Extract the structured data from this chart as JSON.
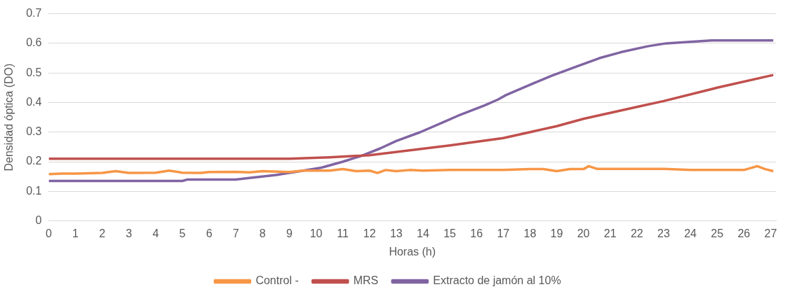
{
  "chart_data": {
    "type": "line",
    "xlabel": "Horas (h)",
    "ylabel": "Densidad óptica (DO)",
    "xlim": [
      0,
      27.2
    ],
    "xticks": [
      0,
      1,
      2,
      3,
      4,
      5,
      6,
      7,
      8,
      9,
      10,
      11,
      12,
      13,
      14,
      15,
      16,
      17,
      18,
      19,
      20,
      21,
      22,
      23,
      24,
      25,
      26,
      27
    ],
    "ylim": [
      0,
      0.7
    ],
    "yticks": [
      0,
      0.1,
      0.2,
      0.3,
      0.4,
      0.5,
      0.6,
      0.7
    ],
    "grid": "y",
    "legend": "bottom",
    "marker": "none",
    "line_style": "solid",
    "series": [
      {
        "name": "Control -",
        "color": "#f79646",
        "x": [
          0,
          0.5,
          1,
          2,
          2.5,
          3,
          4,
          4.5,
          5,
          5.7,
          6,
          7,
          7.5,
          8,
          9,
          9.5,
          10,
          10.5,
          11,
          11.5,
          12,
          12.3,
          12.6,
          13,
          13.5,
          14,
          15,
          16,
          17,
          18,
          18.5,
          19,
          19.5,
          20,
          20.2,
          20.5,
          21,
          22,
          23,
          24,
          25,
          26,
          26.5,
          26.8,
          27.1
        ],
        "values": [
          0.158,
          0.16,
          0.16,
          0.162,
          0.168,
          0.162,
          0.163,
          0.17,
          0.163,
          0.162,
          0.165,
          0.166,
          0.164,
          0.168,
          0.165,
          0.17,
          0.17,
          0.17,
          0.175,
          0.168,
          0.17,
          0.162,
          0.172,
          0.168,
          0.172,
          0.17,
          0.172,
          0.172,
          0.172,
          0.175,
          0.175,
          0.168,
          0.175,
          0.175,
          0.185,
          0.176,
          0.176,
          0.176,
          0.176,
          0.172,
          0.172,
          0.172,
          0.185,
          0.175,
          0.168
        ]
      },
      {
        "name": "MRS",
        "color": "#c0504d",
        "x": [
          0,
          9,
          10.5,
          12,
          15,
          17,
          19,
          20,
          22,
          23,
          25,
          27.1
        ],
        "values": [
          0.21,
          0.21,
          0.215,
          0.222,
          0.255,
          0.28,
          0.32,
          0.345,
          0.385,
          0.405,
          0.45,
          0.493
        ]
      },
      {
        "name": "Extracto de jamón al 10%",
        "color": "#8064a2",
        "x": [
          0,
          5,
          5.2,
          7,
          7.5,
          8.5,
          9.2,
          10.2,
          11,
          11.7,
          12.4,
          13,
          13.9,
          14.8,
          15.3,
          16.3,
          16.8,
          17.1,
          18,
          18.8,
          19.7,
          20.6,
          21.4,
          22.4,
          23.1,
          24,
          24.8,
          27.1
        ],
        "values": [
          0.135,
          0.135,
          0.14,
          0.14,
          0.145,
          0.155,
          0.165,
          0.18,
          0.2,
          0.22,
          0.245,
          0.27,
          0.3,
          0.335,
          0.355,
          0.39,
          0.41,
          0.425,
          0.46,
          0.49,
          0.52,
          0.55,
          0.57,
          0.59,
          0.6,
          0.605,
          0.61,
          0.61
        ]
      }
    ]
  }
}
